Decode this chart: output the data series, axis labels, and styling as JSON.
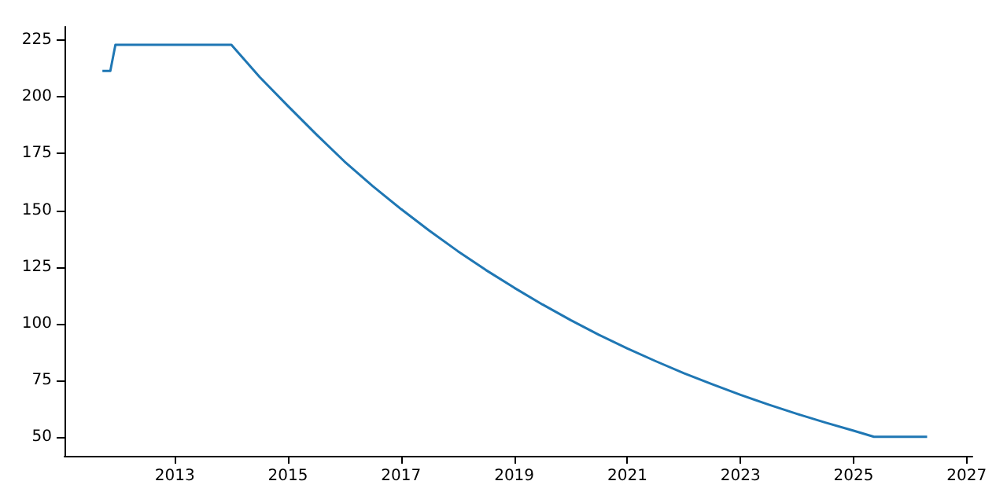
{
  "chart_data": {
    "type": "line",
    "color": "#1f77b4",
    "x": [
      2011.72,
      2011.86,
      2011.95,
      2014.0,
      2014.5,
      2015,
      2015.5,
      2016,
      2016.5,
      2017,
      2017.5,
      2018,
      2018.5,
      2019,
      2019.5,
      2020,
      2020.5,
      2021,
      2021.5,
      2022,
      2022.5,
      2023,
      2023.5,
      2024,
      2024.5,
      2025,
      2025.36,
      2026.3
    ],
    "values": [
      211.5,
      211.5,
      223,
      223,
      208.8,
      196,
      183.5,
      171.5,
      160.6,
      150.5,
      141,
      132,
      123.6,
      115.8,
      108.4,
      101.5,
      95,
      89,
      83.4,
      78.1,
      73.2,
      68.5,
      64.2,
      60.1,
      56.3,
      52.7,
      50,
      50
    ],
    "xlim": [
      2011.05,
      2027.1
    ],
    "ylim": [
      41.6,
      231
    ],
    "xticks": [
      2013,
      2015,
      2017,
      2019,
      2021,
      2023,
      2025,
      2027
    ],
    "yticks": [
      50,
      75,
      100,
      125,
      150,
      175,
      200,
      225
    ],
    "marker": "none",
    "line_style": "solid"
  }
}
